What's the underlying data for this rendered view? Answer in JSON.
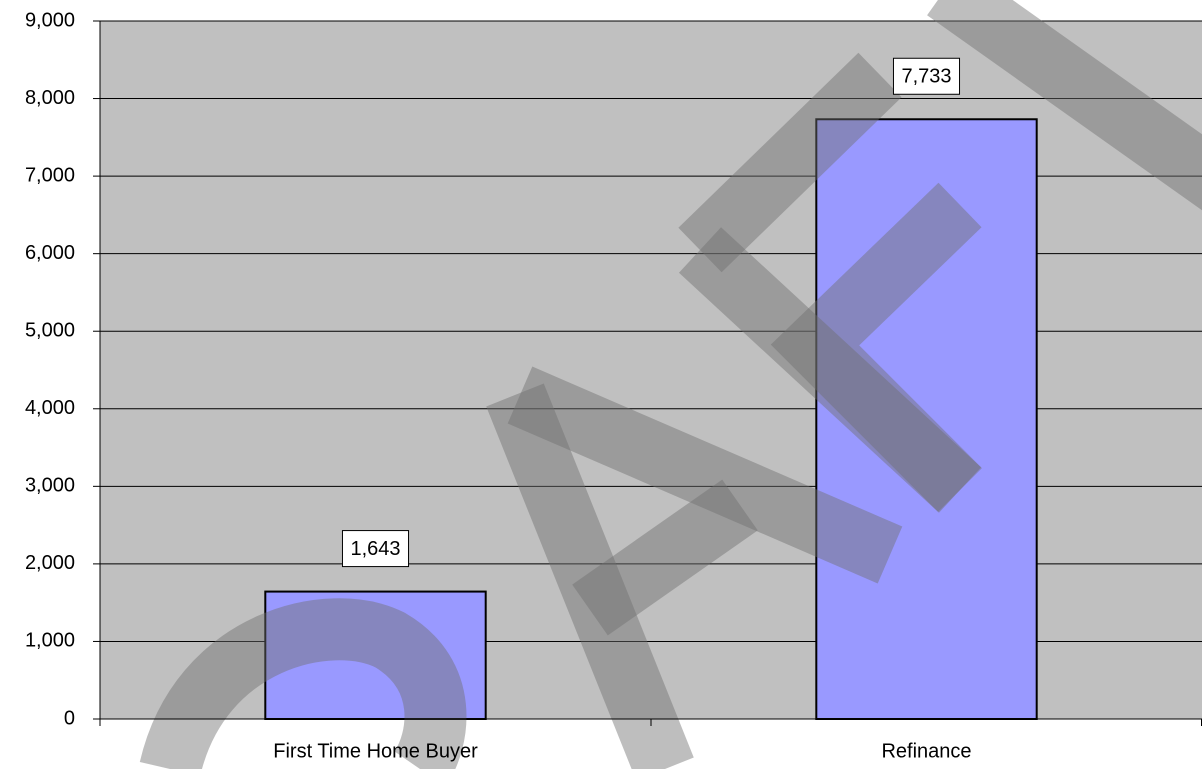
{
  "chart_data": {
    "type": "bar",
    "categories": [
      "First Time Home Buyer",
      "Refinance"
    ],
    "values": [
      1643,
      7733
    ],
    "value_labels": [
      "1,643",
      "7,733"
    ],
    "color": "#9999ff",
    "ylim": [
      0,
      9000
    ],
    "yticks": [
      0,
      {
        "value": 1000,
        "label": "1,000"
      },
      {
        "value": 2000,
        "label": "2,000"
      },
      {
        "value": 3000,
        "label": "3,000"
      },
      {
        "value": 4000,
        "label": "4,000"
      },
      {
        "value": 5000,
        "label": "5,000"
      },
      {
        "value": 6000,
        "label": "6,000"
      },
      {
        "value": 7000,
        "label": "7,000"
      },
      {
        "value": 8000,
        "label": "8,000"
      },
      {
        "value": 9000,
        "label": "9,000"
      }
    ],
    "grid": true
  }
}
